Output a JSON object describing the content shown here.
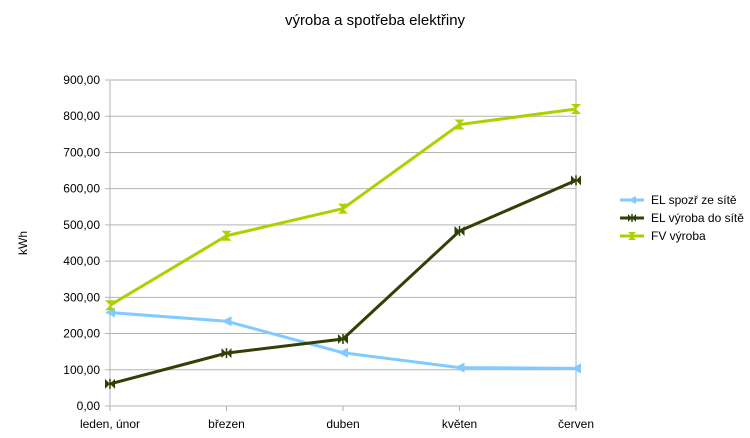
{
  "chart_data": {
    "type": "line",
    "title": "výroba a spotřeba elektřiny",
    "xlabel": "",
    "ylabel": "kWh",
    "categories": [
      "leden, únor",
      "březen",
      "duben",
      "květen",
      "červen"
    ],
    "ylim": [
      0,
      900
    ],
    "yticks": [
      "0,00",
      "100,00",
      "200,00",
      "300,00",
      "400,00",
      "500,00",
      "600,00",
      "700,00",
      "800,00",
      "900,00"
    ],
    "grid": true,
    "legend_position": "right",
    "series": [
      {
        "name": "EL spozř ze sítě",
        "color": "#83caff",
        "marker": "triangle-left",
        "values": [
          258,
          234,
          147,
          106,
          104
        ]
      },
      {
        "name": "EL výroba do sítě",
        "color": "#314004",
        "marker": "bowtie",
        "values": [
          61,
          146,
          185,
          483,
          623
        ]
      },
      {
        "name": "FV výroba",
        "color": "#aecf00",
        "marker": "hourglass",
        "values": [
          278,
          470,
          545,
          777,
          820
        ]
      }
    ]
  }
}
